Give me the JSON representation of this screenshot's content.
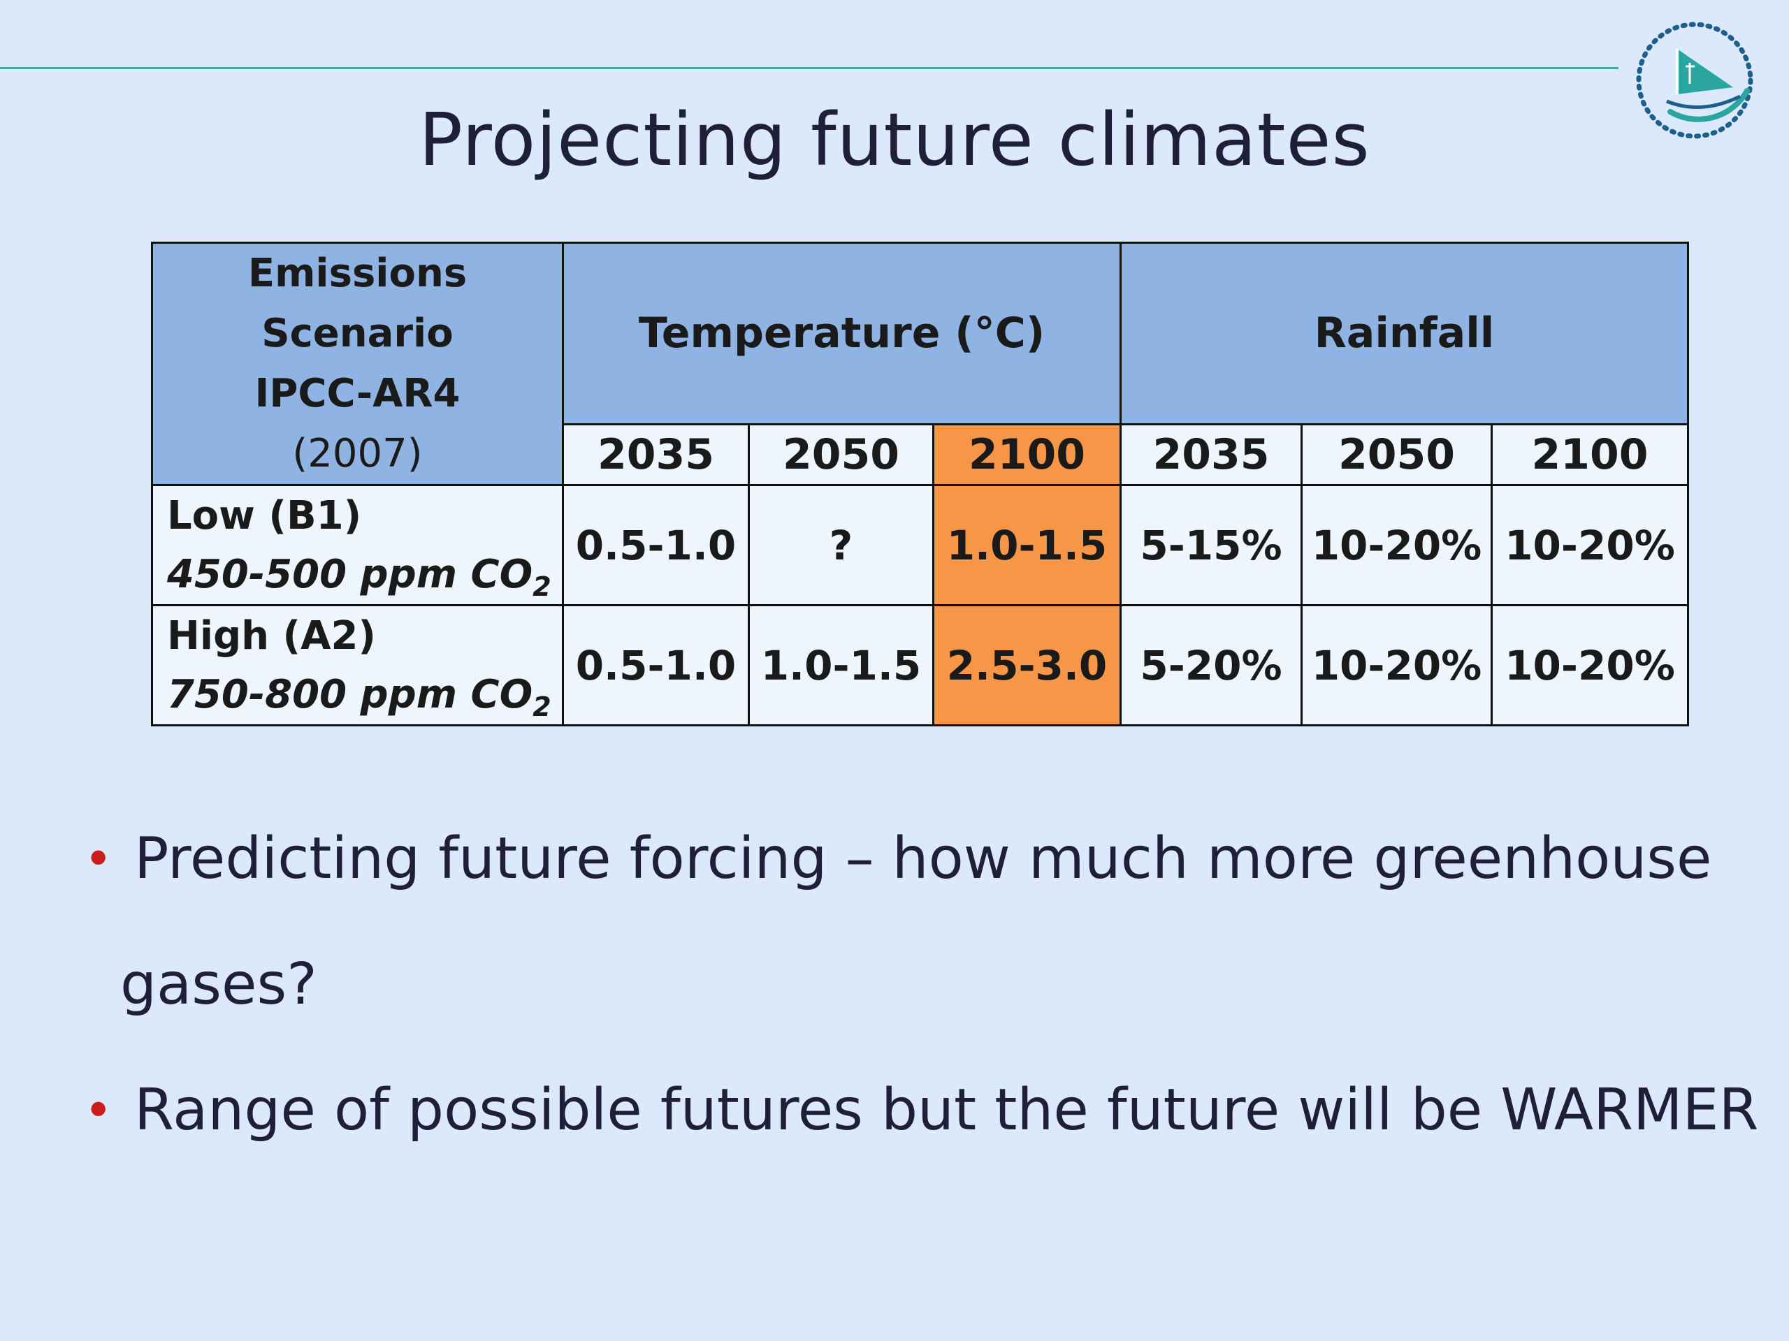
{
  "slide": {
    "title": "Projecting future climates",
    "accent_color": "#49a7a2",
    "logo_icon": "sailboat-circle-logo-icon"
  },
  "table": {
    "scenario_header": {
      "line1": "Emissions",
      "line2": "Scenario",
      "line3": "IPCC-AR4",
      "line4": "(2007)"
    },
    "temperature_header": "Temperature (°C)",
    "rainfall_header": "Rainfall",
    "years": [
      "2035",
      "2050",
      "2100",
      "2035",
      "2050",
      "2100"
    ],
    "rows": [
      {
        "name": "Low  (B1)",
        "ppm": "450-500 ppm CO",
        "sub": "2",
        "values": [
          "0.5-1.0",
          "?",
          "1.0-1.5",
          "5-15%",
          "10-20%",
          "10-20%"
        ]
      },
      {
        "name": "High (A2)",
        "ppm": "750-800 ppm CO",
        "sub": "2",
        "values": [
          "0.5-1.0",
          "1.0-1.5",
          "2.5-3.0",
          "5-20%",
          "10-20%",
          "10-20%"
        ]
      }
    ],
    "header_color": "#8fb4e3",
    "highlight_color": "#f79646"
  },
  "bullets": [
    {
      "marker": "•",
      "line1": "Predicting future forcing – how much more greenhouse",
      "line2": "gases?"
    },
    {
      "marker": "•",
      "line1": "Range of possible futures but the future will be WARMER"
    }
  ]
}
